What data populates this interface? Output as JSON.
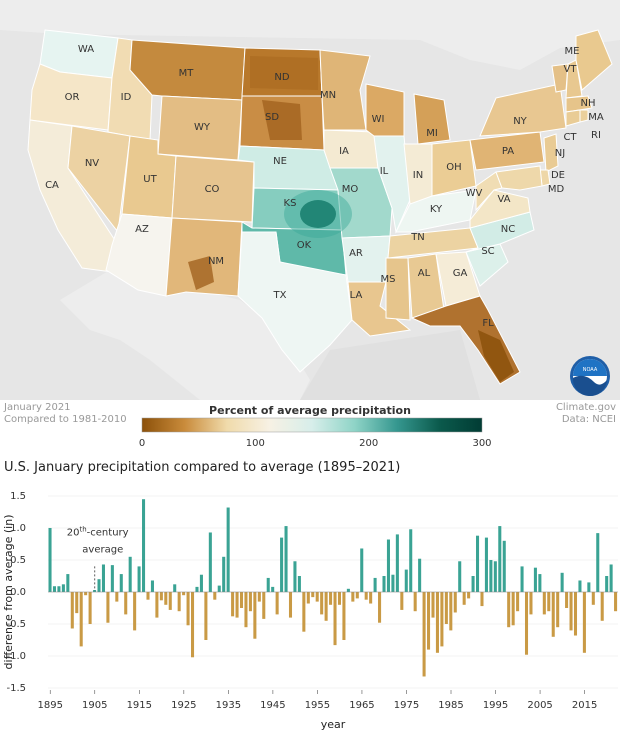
{
  "map": {
    "caption_left_line1": "January 2021",
    "caption_left_line2": "Compared to 1981-2010",
    "caption_right_line1": "Climate.gov",
    "caption_right_line2": "Data: NCEI",
    "logo_text": "NOAA",
    "legend": {
      "title": "Percent of average precipitation",
      "ticks": [
        "0",
        "100",
        "200",
        "300"
      ],
      "colors": [
        "#8c510a",
        "#c98b3b",
        "#f0dbab",
        "#f7f1e4",
        "#d7eeea",
        "#8fd4c7",
        "#35978f",
        "#0b5a4c",
        "#013c34"
      ]
    },
    "states": [
      {
        "abbr": "WA",
        "color": "#e6f4f1"
      },
      {
        "abbr": "OR",
        "color": "#f5e6c8"
      },
      {
        "abbr": "CA",
        "color": "#f4ecd9"
      },
      {
        "abbr": "ID",
        "color": "#f1dcb3"
      },
      {
        "abbr": "NV",
        "color": "#ecd2a3"
      },
      {
        "abbr": "MT",
        "color": "#c48a3e"
      },
      {
        "abbr": "WY",
        "color": "#e3bd84"
      },
      {
        "abbr": "UT",
        "color": "#e9c990"
      },
      {
        "abbr": "AZ",
        "color": "#f6f4ee"
      },
      {
        "abbr": "CO",
        "color": "#e6c48f"
      },
      {
        "abbr": "NM",
        "color": "#e1b77a"
      },
      {
        "abbr": "ND",
        "color": "#b8782b"
      },
      {
        "abbr": "SD",
        "color": "#c98d45"
      },
      {
        "abbr": "NE",
        "color": "#cfece5"
      },
      {
        "abbr": "KS",
        "color": "#86cdbf"
      },
      {
        "abbr": "OK",
        "color": "#5fb9a9"
      },
      {
        "abbr": "TX",
        "color": "#eef6f3"
      },
      {
        "abbr": "MN",
        "color": "#dfb577"
      },
      {
        "abbr": "IA",
        "color": "#f4ead2"
      },
      {
        "abbr": "MO",
        "color": "#a2d9cc"
      },
      {
        "abbr": "AR",
        "color": "#e3f2ee"
      },
      {
        "abbr": "LA",
        "color": "#e8c68f"
      },
      {
        "abbr": "WI",
        "color": "#dba964"
      },
      {
        "abbr": "IL",
        "color": "#e2f2ee"
      },
      {
        "abbr": "MI",
        "color": "#d4a058"
      },
      {
        "abbr": "IN",
        "color": "#f4ebd5"
      },
      {
        "abbr": "OH",
        "color": "#ebcd95"
      },
      {
        "abbr": "KY",
        "color": "#eef6f2"
      },
      {
        "abbr": "TN",
        "color": "#ecd3a2"
      },
      {
        "abbr": "MS",
        "color": "#e6c58c"
      },
      {
        "abbr": "AL",
        "color": "#e8c993"
      },
      {
        "abbr": "GA",
        "color": "#f5ecd7"
      },
      {
        "abbr": "FL",
        "color": "#b0722f"
      },
      {
        "abbr": "SC",
        "color": "#dcf0ea"
      },
      {
        "abbr": "NC",
        "color": "#d2ece6"
      },
      {
        "abbr": "VA",
        "color": "#f3e6c7"
      },
      {
        "abbr": "WV",
        "color": "#f0ddb4"
      },
      {
        "abbr": "PA",
        "color": "#e0b474"
      },
      {
        "abbr": "NY",
        "color": "#e8c791"
      },
      {
        "abbr": "VT",
        "color": "#e4c087"
      },
      {
        "abbr": "NH",
        "color": "#e8c890"
      },
      {
        "abbr": "ME",
        "color": "#e9c98f"
      },
      {
        "abbr": "MA",
        "color": "#e6c48a"
      },
      {
        "abbr": "CT",
        "color": "#e9cc96"
      },
      {
        "abbr": "RI",
        "color": "#ebd09c"
      },
      {
        "abbr": "NJ",
        "color": "#e9cb94"
      },
      {
        "abbr": "DE",
        "color": "#eed7a8"
      },
      {
        "abbr": "MD",
        "color": "#eed8aa"
      }
    ]
  },
  "chart_title": "U.S. January precipitation compared to average (1895–2021)",
  "chart_data": {
    "type": "bar",
    "title": "U.S. January precipitation compared to average (1895–2021)",
    "xlabel": "year",
    "ylabel": "difference from average (in)",
    "ylim": [
      -1.5,
      1.5
    ],
    "yticks": [
      "1.5",
      "1.0",
      "0.5",
      "0.0",
      "-0.5",
      "-1.0",
      "-1.5"
    ],
    "xticks": [
      "1895",
      "1905",
      "1915",
      "1925",
      "1935",
      "1945",
      "1955",
      "1965",
      "1975",
      "1985",
      "1995",
      "2005",
      "2015"
    ],
    "annotation_line1": "20",
    "annotation_sup": "th",
    "annotation_line1_rest": "-century",
    "annotation_line2": "average",
    "positive_color": "#3aa394",
    "negative_color": "#c99a45",
    "years_start": 1895,
    "values": [
      1.0,
      0.09,
      0.09,
      0.12,
      0.28,
      -0.57,
      -0.33,
      -0.85,
      -0.05,
      -0.5,
      0.03,
      0.2,
      0.43,
      -0.48,
      0.42,
      -0.15,
      0.28,
      -0.35,
      0.55,
      -0.6,
      0.4,
      1.45,
      -0.12,
      0.18,
      -0.4,
      -0.13,
      -0.2,
      -0.28,
      0.12,
      -0.3,
      -0.05,
      -0.52,
      -1.02,
      0.08,
      0.27,
      -0.75,
      0.93,
      -0.12,
      0.1,
      0.55,
      1.32,
      -0.38,
      -0.4,
      -0.25,
      -0.55,
      -0.3,
      -0.73,
      -0.15,
      -0.42,
      0.22,
      0.08,
      -0.35,
      0.85,
      1.03,
      -0.4,
      0.48,
      0.25,
      -0.62,
      -0.18,
      -0.08,
      -0.15,
      -0.35,
      -0.45,
      -0.2,
      -0.83,
      -0.2,
      -0.75,
      0.05,
      -0.15,
      -0.1,
      0.68,
      -0.12,
      -0.18,
      0.22,
      -0.48,
      0.25,
      0.82,
      0.27,
      0.9,
      -0.28,
      0.35,
      0.98,
      -0.3,
      0.52,
      -1.32,
      -0.9,
      -0.4,
      -0.95,
      -0.85,
      -0.5,
      -0.6,
      -0.32,
      0.48,
      -0.2,
      -0.1,
      0.25,
      0.88,
      -0.22,
      0.85,
      0.5,
      0.48,
      1.03,
      0.8,
      -0.55,
      -0.52,
      -0.3,
      0.4,
      -0.98,
      -0.35,
      0.38,
      0.28,
      -0.35,
      -0.3,
      -0.7,
      -0.55,
      0.3,
      -0.25,
      -0.6,
      -0.68,
      0.18,
      -0.95,
      0.15,
      -0.2,
      0.92,
      -0.45,
      0.25,
      0.43,
      -0.3
    ]
  }
}
